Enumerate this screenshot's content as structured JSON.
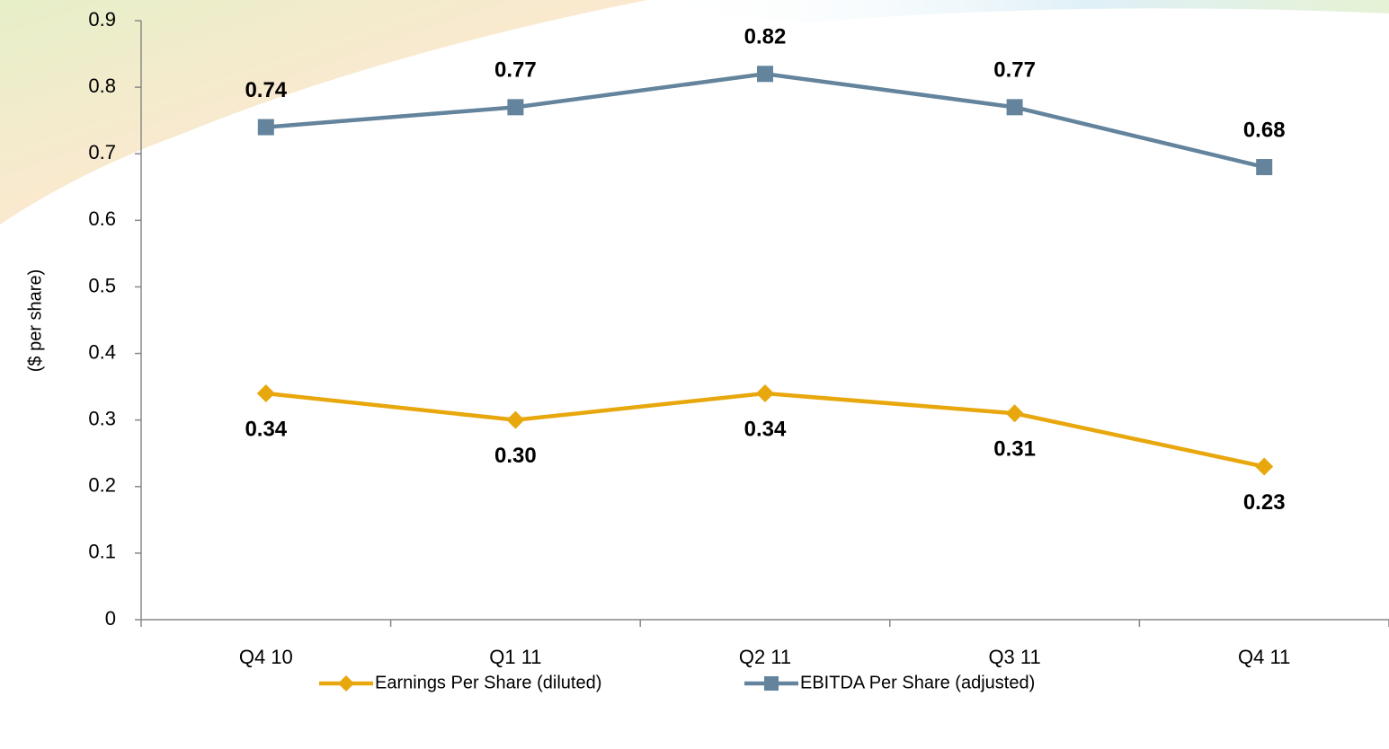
{
  "chart_data": {
    "type": "line",
    "y_label": "($ per share)",
    "categories": [
      "Q4 10",
      "Q1 11",
      "Q2 11",
      "Q3 11",
      "Q4 11"
    ],
    "series": [
      {
        "name": "Earnings Per Share (diluted)",
        "color": "#e8a70c",
        "marker": "diamond",
        "values": [
          0.34,
          0.3,
          0.34,
          0.31,
          0.23
        ],
        "value_labels": [
          "0.34",
          "0.30",
          "0.34",
          "0.31",
          "0.23"
        ]
      },
      {
        "name": "EBITDA Per Share (adjusted)",
        "color": "#63849c",
        "marker": "square",
        "values": [
          0.74,
          0.77,
          0.82,
          0.77,
          0.68
        ]
      }
    ],
    "ylim": [
      0,
      0.9
    ],
    "yticks": [
      0,
      0.1,
      0.2,
      0.3,
      0.4,
      0.5,
      0.6,
      0.7,
      0.8,
      0.9
    ],
    "grid": false
  }
}
